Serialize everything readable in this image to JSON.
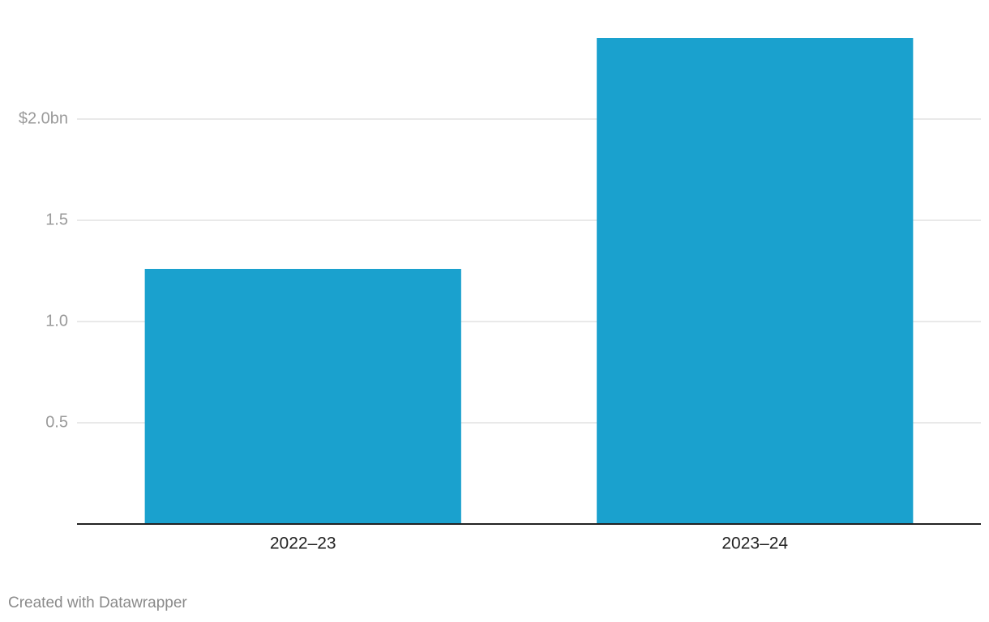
{
  "chart_data": {
    "type": "bar",
    "categories": [
      "2022–23",
      "2023–24"
    ],
    "values": [
      1.26,
      2.4
    ],
    "color": "#1aa1ce",
    "ylim": [
      0,
      2.4
    ],
    "yticks": [
      0.5,
      {
        "value": 1,
        "label": "1.0"
      },
      1.5,
      {
        "value": 2,
        "label": "$2.0bn"
      }
    ],
    "grid": true
  },
  "footer": "Created with Datawrapper"
}
